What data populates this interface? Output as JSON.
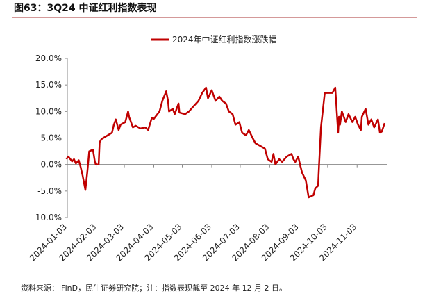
{
  "chart_data": {
    "type": "line",
    "title": "图63：3Q24 中证红利指数表现",
    "source_note": "资料来源：iFinD，民生证券研究院；注：指数表现截至 2024 年 12 月 2 日。",
    "legend_position": "top",
    "x": [
      "2024-01-02",
      "2024-01-04",
      "2024-01-08",
      "2024-01-10",
      "2024-01-12",
      "2024-01-15",
      "2024-01-17",
      "2024-01-19",
      "2024-01-22",
      "2024-01-24",
      "2024-01-26",
      "2024-01-30",
      "2024-02-01",
      "2024-02-02",
      "2024-02-05",
      "2024-02-06",
      "2024-02-08",
      "2024-02-19",
      "2024-02-21",
      "2024-02-23",
      "2024-02-26",
      "2024-02-28",
      "2024-03-04",
      "2024-03-07",
      "2024-03-08",
      "2024-03-12",
      "2024-03-15",
      "2024-03-20",
      "2024-03-25",
      "2024-03-28",
      "2024-04-01",
      "2024-04-03",
      "2024-04-09",
      "2024-04-12",
      "2024-04-16",
      "2024-04-18",
      "2024-04-19",
      "2024-04-23",
      "2024-04-25",
      "2024-04-29",
      "2024-04-30",
      "2024-05-06",
      "2024-05-10",
      "2024-05-15",
      "2024-05-20",
      "2024-05-24",
      "2024-05-28",
      "2024-05-30",
      "2024-06-03",
      "2024-06-07",
      "2024-06-11",
      "2024-06-14",
      "2024-06-18",
      "2024-06-21",
      "2024-06-25",
      "2024-06-28",
      "2024-07-02",
      "2024-07-05",
      "2024-07-09",
      "2024-07-12",
      "2024-07-16",
      "2024-07-19",
      "2024-07-24",
      "2024-07-29",
      "2024-08-01",
      "2024-08-05",
      "2024-08-07",
      "2024-08-09",
      "2024-08-13",
      "2024-08-16",
      "2024-08-21",
      "2024-08-26",
      "2024-08-28",
      "2024-08-30",
      "2024-09-02",
      "2024-09-04",
      "2024-09-06",
      "2024-09-10",
      "2024-09-13",
      "2024-09-18",
      "2024-09-20",
      "2024-09-23",
      "2024-09-24",
      "2024-09-26",
      "2024-09-30",
      "2024-10-08",
      "2024-10-11",
      "2024-10-14",
      "2024-10-15",
      "2024-10-16",
      "2024-10-18",
      "2024-10-22",
      "2024-10-25",
      "2024-10-29",
      "2024-11-01",
      "2024-11-04",
      "2024-11-07",
      "2024-11-08",
      "2024-11-12",
      "2024-11-15",
      "2024-11-18",
      "2024-11-21",
      "2024-11-25",
      "2024-11-27",
      "2024-11-29",
      "2024-12-02"
    ],
    "series": [
      {
        "name": "2024年中证红利指数涨跌幅",
        "color": "#c00000",
        "values": [
          1.0,
          1.5,
          0.6,
          1.0,
          0.2,
          0.8,
          -0.5,
          -2.0,
          -4.8,
          -1.5,
          2.5,
          2.8,
          0.5,
          0,
          0,
          4.2,
          4.8,
          6.0,
          7.5,
          8.5,
          6.5,
          7.5,
          8.0,
          10.0,
          9.0,
          7.0,
          7.3,
          6.8,
          7.0,
          6.5,
          8.8,
          8.6,
          10.0,
          12.0,
          13.8,
          12.0,
          10.0,
          10.5,
          9.5,
          11.5,
          9.8,
          9.5,
          10.0,
          11.0,
          12.0,
          13.5,
          14.5,
          12.5,
          14.0,
          12.0,
          12.8,
          12.0,
          11.5,
          10.0,
          9.5,
          7.5,
          8.0,
          6.0,
          5.5,
          6.5,
          5.0,
          4.0,
          3.5,
          3.0,
          1.0,
          0.5,
          2.0,
          0,
          1.0,
          0.5,
          1.5,
          2.0,
          1.0,
          0.5,
          1.5,
          0,
          -1.5,
          -3.0,
          -6.2,
          -5.8,
          -4.5,
          -4.0,
          0,
          7.0,
          13.5,
          13.5,
          14.5,
          6.0,
          9.0,
          7.5,
          10.0,
          8.0,
          9.5,
          8.0,
          9.0,
          7.5,
          6.5,
          9.0,
          10.5,
          7.5,
          8.5,
          7.0,
          8.5,
          6.0,
          6.2,
          7.8
        ]
      }
    ],
    "xlim": [
      "2024-01-03",
      "2024-12-05"
    ],
    "xticks": [
      "2024-01-03",
      "2024-02-03",
      "2024-03-03",
      "2024-04-03",
      "2024-05-03",
      "2024-06-03",
      "2024-07-03",
      "2024-08-03",
      "2024-09-03",
      "2024-10-03",
      "2024-11-03"
    ],
    "ylim": [
      -10,
      20
    ],
    "yticks": [
      {
        "value": -10,
        "label": "-10.0%"
      },
      {
        "value": -5,
        "label": "-5.0%"
      },
      {
        "value": 0,
        "label": "0.0%"
      },
      {
        "value": 5,
        "label": "5.0%"
      },
      {
        "value": 10,
        "label": "10.0%"
      },
      {
        "value": 15,
        "label": "15.0%"
      },
      {
        "value": 20,
        "label": "20.0%"
      }
    ],
    "grid": false
  }
}
